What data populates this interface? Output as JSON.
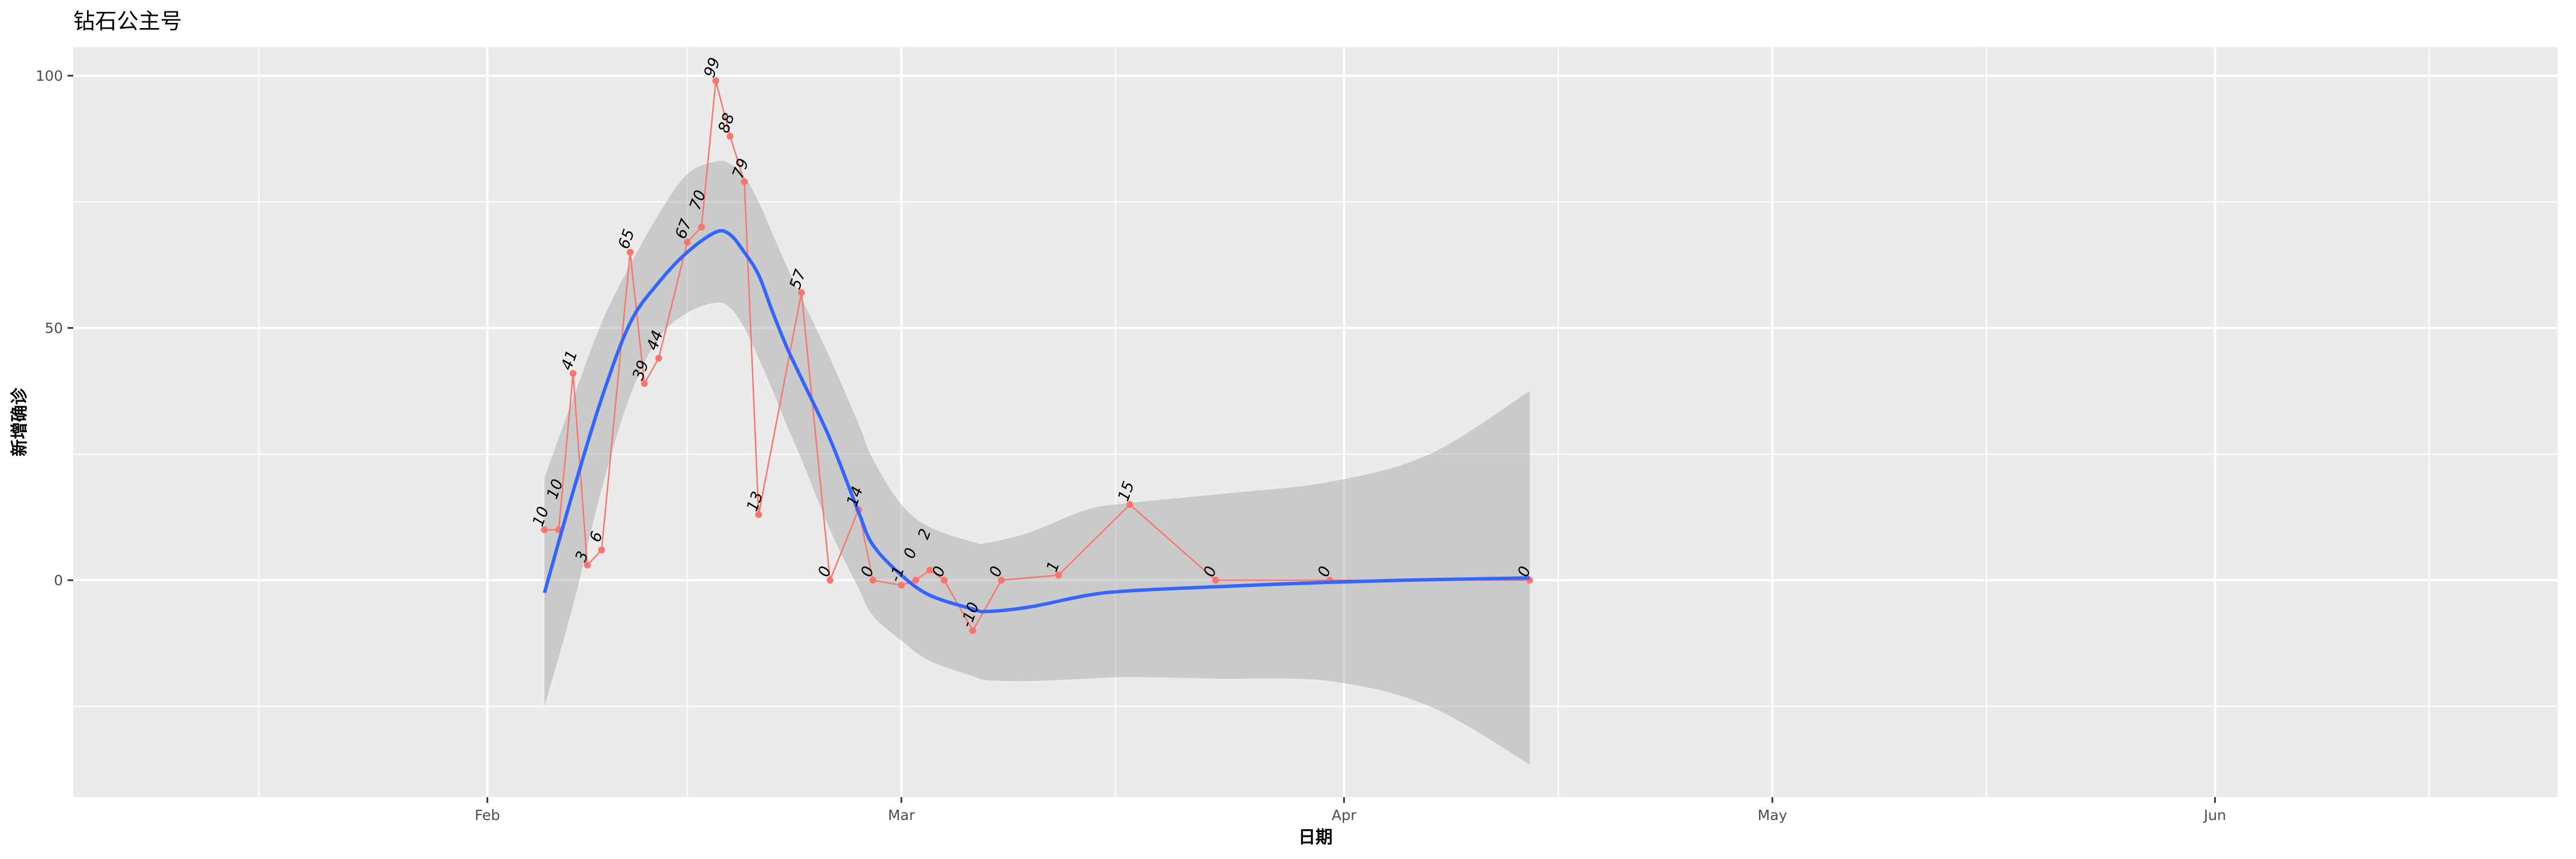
{
  "chart_data": {
    "type": "line",
    "title": "钻石公主号",
    "xlabel": "日期",
    "ylabel": "新增确诊",
    "xlim": [
      "2020-01-03",
      "2020-06-25"
    ],
    "ylim": [
      -43,
      105.7
    ],
    "grid": true,
    "x_ticks": [
      {
        "date": "2020-02-01",
        "label": "Feb"
      },
      {
        "date": "2020-03-01",
        "label": "Mar"
      },
      {
        "date": "2020-04-01",
        "label": "Apr"
      },
      {
        "date": "2020-05-01",
        "label": "May"
      },
      {
        "date": "2020-06-01",
        "label": "Jun"
      }
    ],
    "x_minor_ticks": [
      "2020-01-16",
      "2020-02-15",
      "2020-03-16",
      "2020-04-16",
      "2020-05-16",
      "2020-06-16"
    ],
    "y_ticks": [
      0,
      50,
      100
    ],
    "y_minor_ticks": [
      -25,
      25,
      75
    ],
    "colors": {
      "points": "#F8766D",
      "smooth": "#3366FF",
      "ribbon": "#999999",
      "panel": "#EBEBEB",
      "grid": "#FFFFFF"
    },
    "series": [
      {
        "type": "line+points",
        "points": [
          [
            "2020-02-05",
            10
          ],
          [
            "2020-02-06",
            10
          ],
          [
            "2020-02-07",
            41
          ],
          [
            "2020-02-08",
            3
          ],
          [
            "2020-02-09",
            6
          ],
          [
            "2020-02-11",
            65
          ],
          [
            "2020-02-12",
            39
          ],
          [
            "2020-02-13",
            44
          ],
          [
            "2020-02-15",
            67
          ],
          [
            "2020-02-16",
            70
          ],
          [
            "2020-02-17",
            99
          ],
          [
            "2020-02-18",
            88
          ],
          [
            "2020-02-19",
            79
          ],
          [
            "2020-02-20",
            13
          ],
          [
            "2020-02-23",
            57
          ],
          [
            "2020-02-25",
            0
          ],
          [
            "2020-02-27",
            14
          ],
          [
            "2020-02-28",
            0
          ],
          [
            "2020-03-01",
            -1
          ],
          [
            "2020-03-02",
            0
          ],
          [
            "2020-03-03",
            2
          ],
          [
            "2020-03-04",
            0
          ],
          [
            "2020-03-06",
            -10
          ],
          [
            "2020-03-08",
            0
          ],
          [
            "2020-03-12",
            1
          ],
          [
            "2020-03-17",
            15
          ],
          [
            "2020-03-23",
            0
          ],
          [
            "2020-03-31",
            0
          ],
          [
            "2020-04-14",
            0
          ]
        ]
      },
      {
        "type": "smooth",
        "fit": [
          [
            "2020-02-05",
            -2.5,
            -25,
            20.3
          ],
          [
            "2020-02-07",
            17.5,
            -5,
            36
          ],
          [
            "2020-02-09",
            36,
            18,
            51
          ],
          [
            "2020-02-11",
            51,
            36.6,
            62.5
          ],
          [
            "2020-02-13",
            59,
            48,
            72.5
          ],
          [
            "2020-02-15",
            65,
            53,
            80.5
          ],
          [
            "2020-02-17",
            69,
            55,
            83
          ],
          [
            "2020-02-18",
            68.5,
            54,
            82.5
          ],
          [
            "2020-02-19",
            65,
            50,
            80
          ],
          [
            "2020-02-20",
            60.5,
            44,
            75
          ],
          [
            "2020-02-21",
            53,
            37.5,
            68.5
          ],
          [
            "2020-02-22",
            46,
            30.5,
            62
          ],
          [
            "2020-02-23",
            40,
            24,
            56
          ],
          [
            "2020-02-25",
            28,
            10,
            44
          ],
          [
            "2020-02-27",
            13.5,
            -1.6,
            31
          ],
          [
            "2020-02-28",
            7,
            -7,
            24
          ],
          [
            "2020-03-01",
            1,
            -12,
            15
          ],
          [
            "2020-03-03",
            -3,
            -16,
            10.5
          ],
          [
            "2020-03-06",
            -5.7,
            -19,
            7.6
          ],
          [
            "2020-03-07",
            -6.2,
            -19.8,
            7.4
          ],
          [
            "2020-03-10",
            -5.3,
            -20,
            9.5
          ],
          [
            "2020-03-14",
            -3,
            -19.5,
            14
          ],
          [
            "2020-03-17",
            -2.1,
            -19.2,
            15.3
          ],
          [
            "2020-03-23",
            -1.3,
            -19.5,
            17
          ],
          [
            "2020-03-31",
            -0.4,
            -20,
            19.5
          ],
          [
            "2020-04-07",
            0.1,
            -25,
            25
          ],
          [
            "2020-04-14",
            0.45,
            -36.5,
            37.5
          ]
        ]
      }
    ]
  }
}
